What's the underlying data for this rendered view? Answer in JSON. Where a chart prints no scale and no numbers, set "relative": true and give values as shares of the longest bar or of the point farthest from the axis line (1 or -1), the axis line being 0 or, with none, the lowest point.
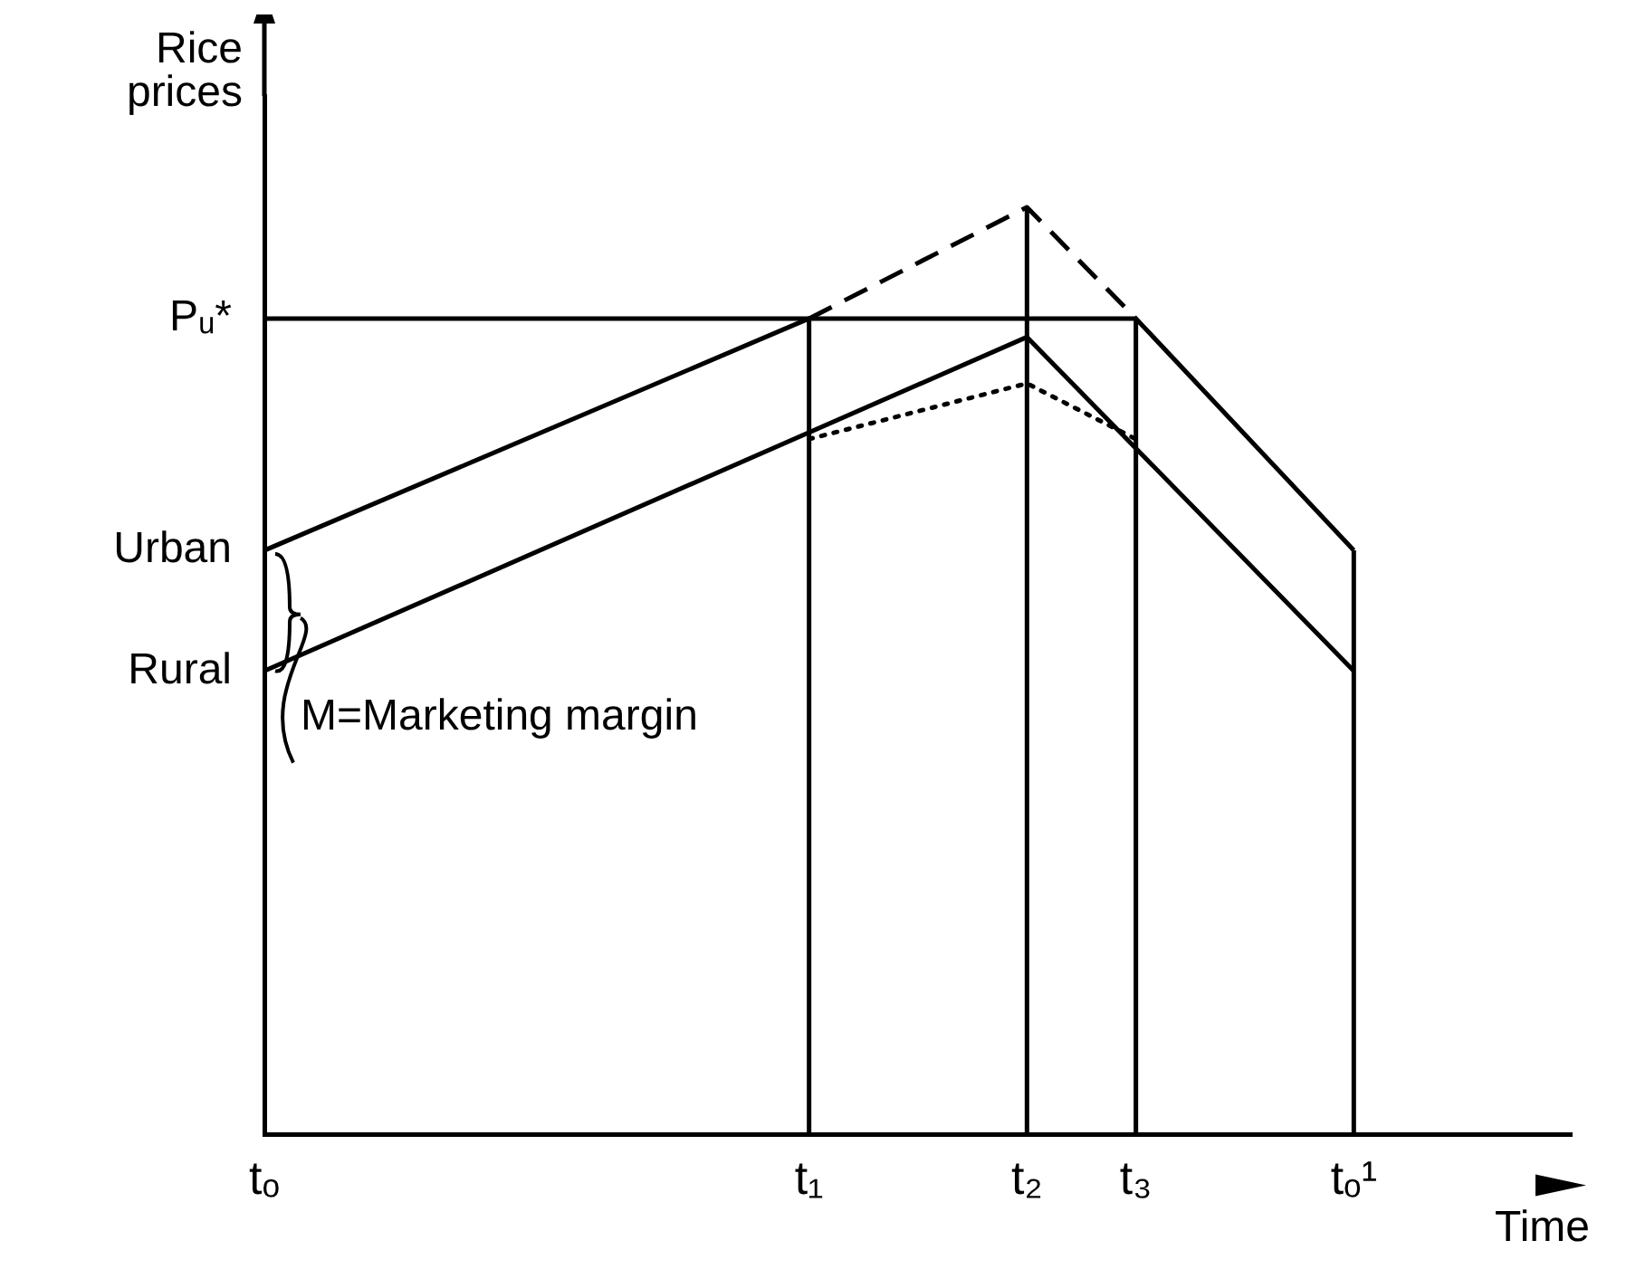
{
  "chart_data": {
    "type": "line",
    "relative": true,
    "xlabel": "Time",
    "ylabel": "Rice prices",
    "categories": [
      "tₒ",
      null,
      null,
      null,
      null,
      null,
      null,
      null,
      null,
      null,
      "t₁",
      null,
      null,
      null,
      "t₂",
      null,
      "t₃",
      null,
      null,
      null,
      "tₒ¹",
      null,
      null,
      null,
      null
    ],
    "series": [
      {
        "name": "Urban",
        "color": "#000000",
        "x": [
          "tₒ",
          "t₁",
          "t₃",
          "tₒ¹"
        ],
        "values": [
          0.63,
          0.88,
          0.88,
          0.63
        ],
        "line_style": "solid"
      },
      {
        "name": "Rural",
        "color": "#000000",
        "x": [
          "tₒ",
          "t₂",
          "tₒ¹"
        ],
        "values": [
          0.5,
          0.86,
          0.5
        ],
        "line_style": "solid"
      },
      {
        "name": "Pᵤ*",
        "color": "#000000",
        "x": [
          "tₒ",
          "t₁"
        ],
        "values": [
          0.88,
          0.88
        ],
        "line_style": "solid"
      },
      {
        "color": "#000000",
        "x": [
          "t₁",
          "t₂",
          "t₃"
        ],
        "values": [
          0.88,
          1,
          0.88
        ],
        "line_style": "dashed"
      },
      {
        "color": "#000000",
        "x": [
          "t₁",
          "t₂",
          "t₃"
        ],
        "values": [
          0.75,
          0.81,
          0.75
        ],
        "line_style": "dotted"
      },
      {
        "color": "#000000",
        "x": [
          "t₁",
          "t₁"
        ],
        "values": [
          0,
          0.88
        ],
        "line_style": "solid"
      },
      {
        "color": "#000000",
        "x": [
          "t₂",
          "t₂"
        ],
        "values": [
          0,
          1
        ],
        "line_style": "solid"
      },
      {
        "color": "#000000",
        "x": [
          "t₃",
          "t₃"
        ],
        "values": [
          0,
          0.88
        ],
        "line_style": "solid"
      },
      {
        "color": "#000000",
        "x": [
          "tₒ¹",
          "tₒ¹"
        ],
        "values": [
          0,
          0.63
        ],
        "line_style": "solid"
      }
    ],
    "annotations": [
      "M=Marketing margin"
    ],
    "legend": false,
    "grid": false,
    "marker": "none"
  }
}
